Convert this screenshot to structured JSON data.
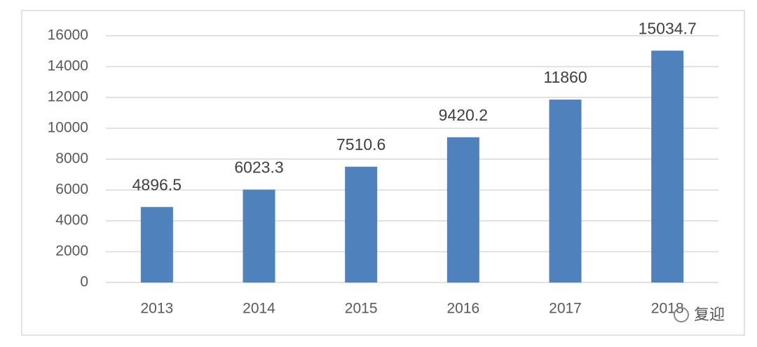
{
  "chart_data": {
    "type": "bar",
    "categories": [
      "2013",
      "2014",
      "2015",
      "2016",
      "2017",
      "2018"
    ],
    "values": [
      4896.5,
      6023.3,
      7510.6,
      9420.2,
      11860,
      15034.7
    ],
    "color": "#4f81bd",
    "ylim": [
      0,
      16000
    ],
    "yticks": [
      0,
      2000,
      4000,
      6000,
      8000,
      10000,
      12000,
      14000,
      16000
    ],
    "grid": true,
    "data_labels": true,
    "watermark": "复迎"
  }
}
